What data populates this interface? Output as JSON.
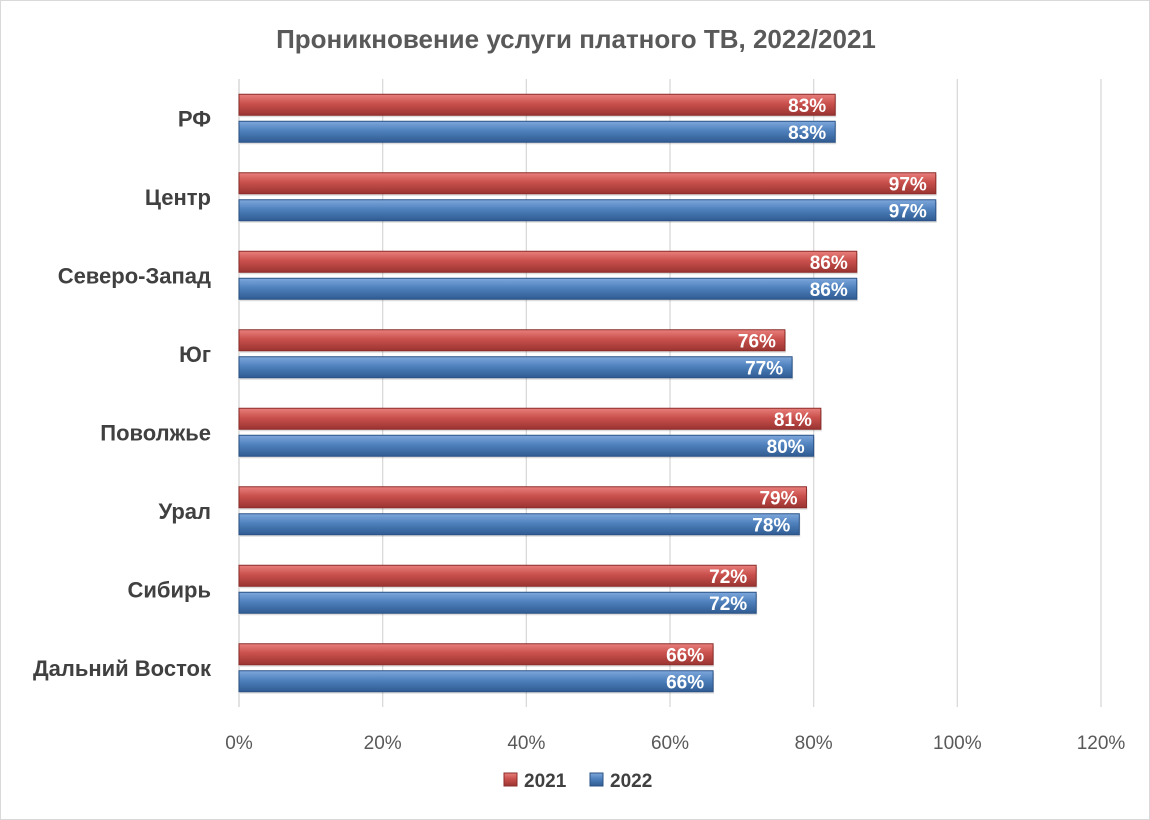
{
  "chart_data": {
    "type": "bar",
    "orientation": "horizontal",
    "title": "Проникновение услуги платного ТВ, 2022/2021",
    "categories": [
      "РФ",
      "Центр",
      "Северо-Запад",
      "Юг",
      "Поволжье",
      "Урал",
      "Сибирь",
      "Дальний Восток"
    ],
    "series": [
      {
        "name": "2021",
        "color": "#c0504d",
        "values": [
          83,
          97,
          86,
          76,
          81,
          79,
          72,
          66
        ],
        "labels": [
          "83%",
          "97%",
          "86%",
          "76%",
          "81%",
          "79%",
          "72%",
          "66%"
        ]
      },
      {
        "name": "2022",
        "color": "#4f81bd",
        "values": [
          83,
          97,
          86,
          77,
          80,
          78,
          72,
          66
        ],
        "labels": [
          "83%",
          "97%",
          "86%",
          "77%",
          "80%",
          "78%",
          "72%",
          "66%"
        ]
      }
    ],
    "xlim": [
      0,
      120
    ],
    "xticks": [
      0,
      20,
      40,
      60,
      80,
      100,
      120
    ],
    "xtick_labels": [
      "0%",
      "20%",
      "40%",
      "60%",
      "80%",
      "100%",
      "120%"
    ],
    "xlabel": "",
    "ylabel": "",
    "grid": "vertical",
    "legend": "bottom"
  }
}
